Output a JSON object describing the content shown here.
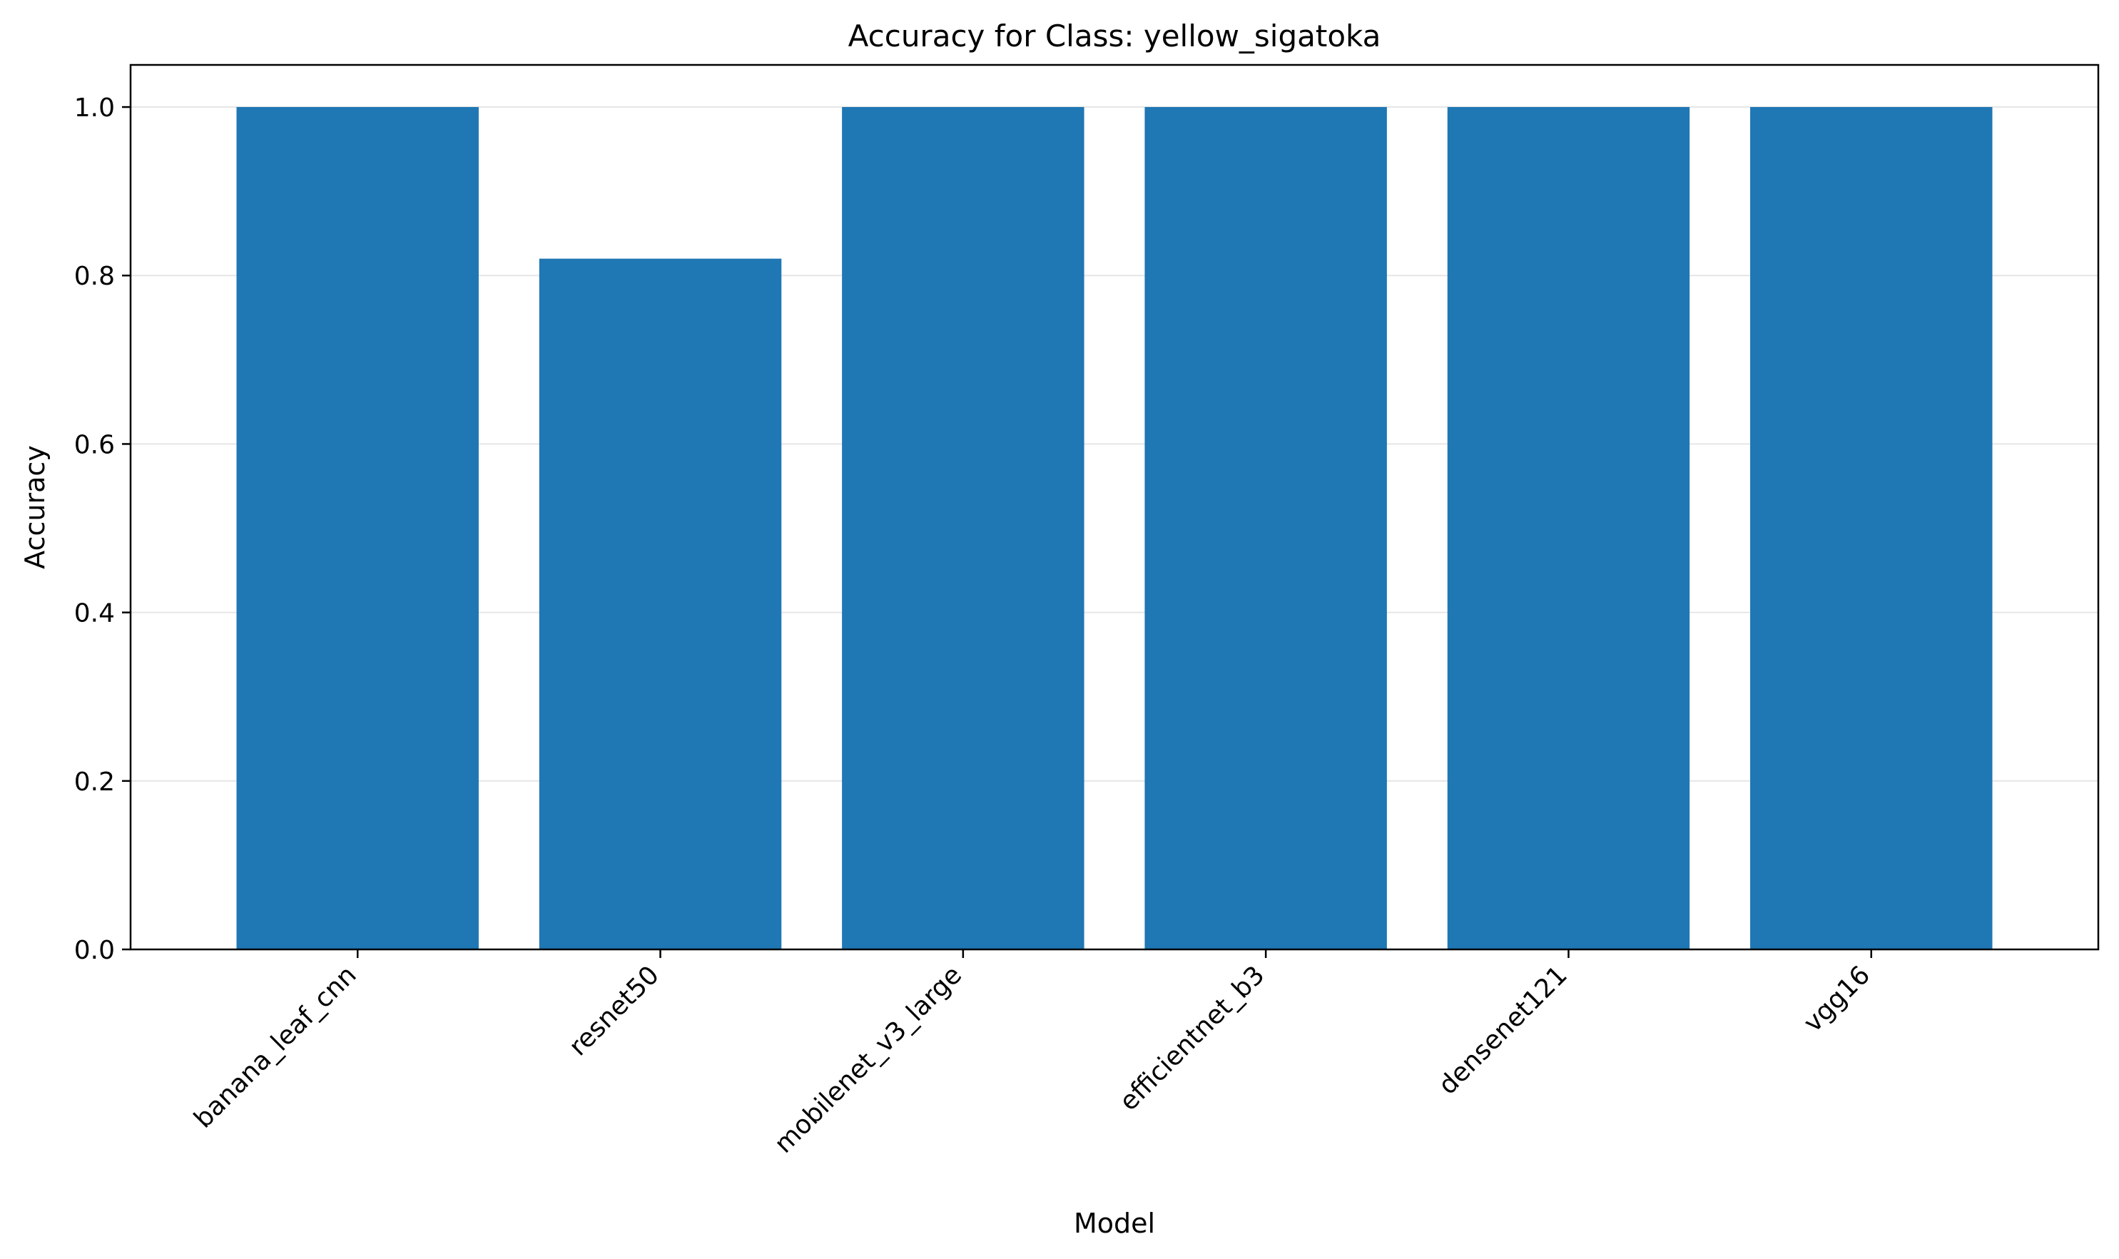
{
  "chart_data": {
    "type": "bar",
    "title": "Accuracy for Class: yellow_sigatoka",
    "xlabel": "Model",
    "ylabel": "Accuracy",
    "categories": [
      "banana_leaf_cnn",
      "resnet50",
      "mobilenet_v3_large",
      "efficientnet_b3",
      "densenet121",
      "vgg16"
    ],
    "values": [
      1.0,
      0.82,
      1.0,
      1.0,
      1.0,
      1.0
    ],
    "ylim": [
      0,
      1.05
    ],
    "yticks": [
      "0.0",
      "0.2",
      "0.4",
      "0.6",
      "0.8",
      "1.0"
    ],
    "grid": "y",
    "bar_color": "#1f77b4"
  }
}
